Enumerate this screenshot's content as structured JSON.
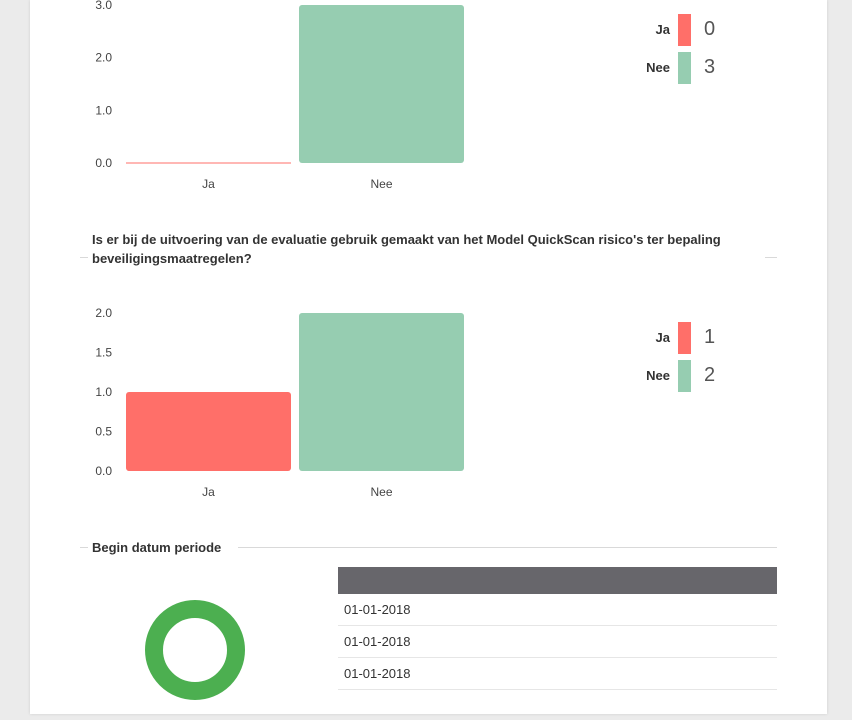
{
  "charts": {
    "chart1": {
      "title": "",
      "legend": [
        {
          "label": "Ja",
          "count": "0"
        },
        {
          "label": "Nee",
          "count": "3"
        }
      ]
    },
    "chart2": {
      "title": "Is er bij de uitvoering van de evaluatie gebruik gemaakt van het Model QuickScan risico's ter bepaling beveiligingsmaatregelen?",
      "legend": [
        {
          "label": "Ja",
          "count": "1"
        },
        {
          "label": "Nee",
          "count": "2"
        }
      ]
    }
  },
  "section3": {
    "title": "Begin datum periode",
    "table_rows": [
      "01-01-2018",
      "01-01-2018",
      "01-01-2018"
    ]
  },
  "colors": {
    "ja": "#ff6f69",
    "nee": "#96cdb1",
    "donut": "#4caf50",
    "table_header": "#67666b"
  },
  "chart_data": [
    {
      "type": "bar",
      "categories": [
        "Ja",
        "Nee"
      ],
      "values": [
        0,
        3
      ],
      "ylim": [
        0,
        3
      ],
      "yticks": [
        "0.0",
        "1.0",
        "2.0",
        "3.0"
      ],
      "ytick_values": [
        0,
        1,
        2,
        3
      ],
      "grid": false,
      "legend": "right"
    },
    {
      "type": "bar",
      "categories": [
        "Ja",
        "Nee"
      ],
      "values": [
        1,
        2
      ],
      "ylim": [
        0,
        2
      ],
      "yticks": [
        "0.0",
        "0.5",
        "1.0",
        "1.5",
        "2.0"
      ],
      "ytick_values": [
        0,
        0.5,
        1,
        1.5,
        2
      ],
      "grid": false,
      "legend": "right"
    }
  ]
}
